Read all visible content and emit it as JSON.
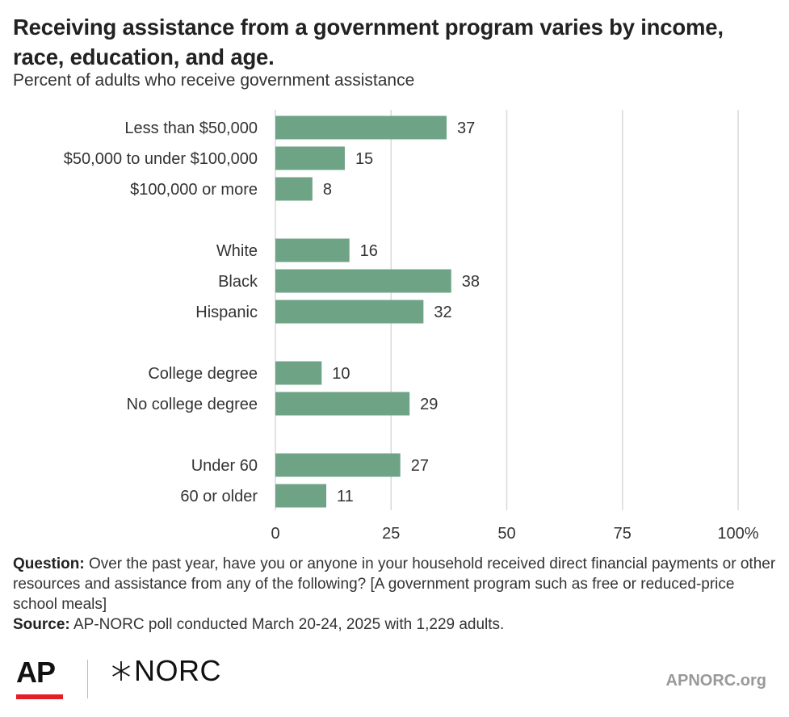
{
  "header": {
    "title": "Receiving assistance from a government program varies by income, race, education, and age.",
    "subtitle": "Percent of adults who receive government assistance"
  },
  "chart_data": {
    "type": "bar",
    "orientation": "horizontal",
    "categories": [
      "Less than $50,000",
      "$50,000 to under $100,000",
      "$100,000 or more",
      "White",
      "Black",
      "Hispanic",
      "College degree",
      "No college degree",
      "Under 60",
      "60 or older"
    ],
    "groups": [
      [
        "Less than $50,000",
        "$50,000 to under $100,000",
        "$100,000 or more"
      ],
      [
        "White",
        "Black",
        "Hispanic"
      ],
      [
        "College degree",
        "No college degree"
      ],
      [
        "Under 60",
        "60 or older"
      ]
    ],
    "values": [
      37,
      15,
      8,
      16,
      38,
      32,
      10,
      29,
      27,
      11
    ],
    "xlim": [
      0,
      100
    ],
    "xticks": [
      0,
      25,
      50,
      75,
      100
    ],
    "xtick_labels": [
      "0",
      "25",
      "50",
      "75",
      "100%"
    ],
    "grid": true,
    "bar_color": "#6ea386",
    "grid_color": "#d9d9d9"
  },
  "notes": {
    "question_label": "Question:",
    "question_text": "Over the past year, have you or anyone in your household received direct financial payments or other resources and assistance from any of the following? [A government program such as free or reduced-price school meals]",
    "source_label": "Source:",
    "source_text": "AP-NORC poll conducted March 20-24, 2025 with 1,229 adults."
  },
  "footer": {
    "ap_logo": "AP",
    "norc_logo": "NORC",
    "site": "APNORC.org",
    "ap_red": "#e31e24"
  }
}
